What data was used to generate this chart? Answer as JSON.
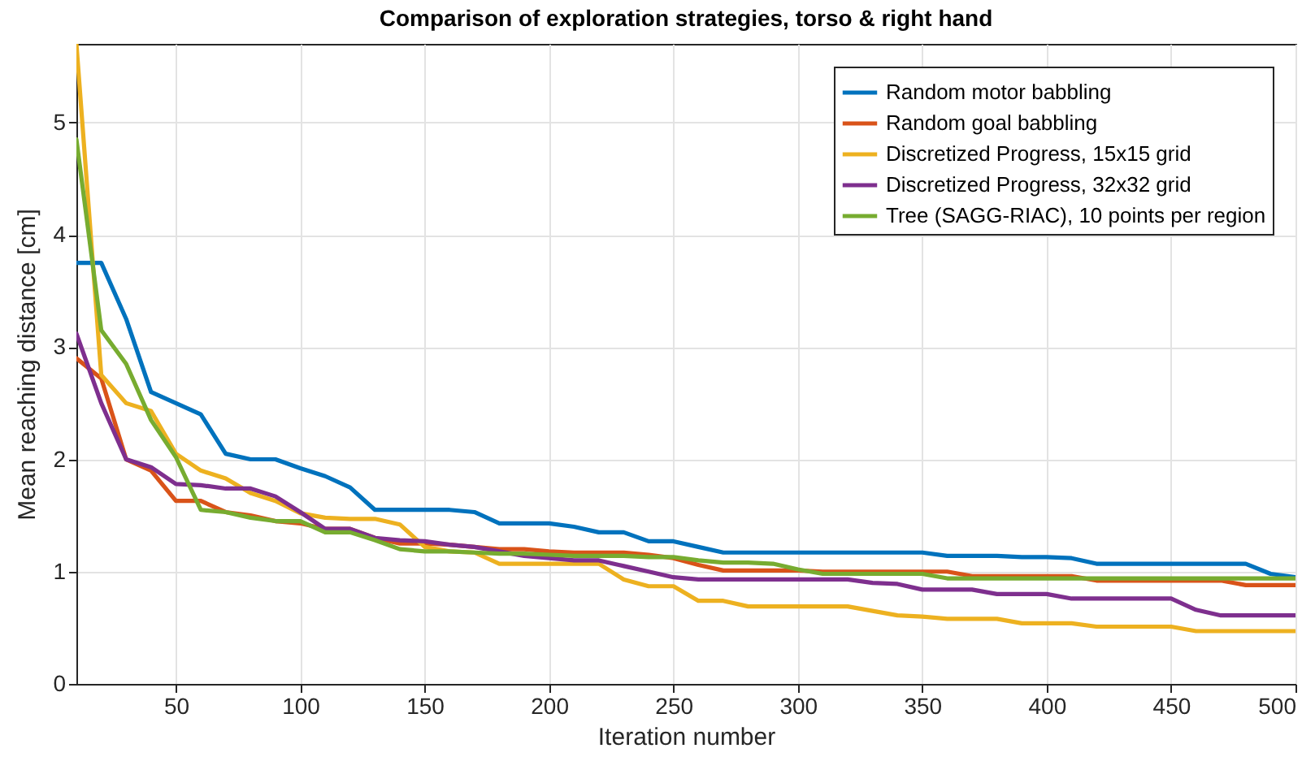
{
  "chart_data": {
    "type": "line",
    "title": "Comparison of exploration strategies, torso & right hand",
    "xlabel": "Iteration number",
    "ylabel": "Mean reaching distance [cm]",
    "x": [
      10,
      20,
      30,
      40,
      50,
      60,
      70,
      80,
      90,
      100,
      110,
      120,
      130,
      140,
      150,
      160,
      170,
      180,
      190,
      200,
      210,
      220,
      230,
      240,
      250,
      260,
      270,
      280,
      290,
      300,
      310,
      320,
      330,
      340,
      350,
      360,
      370,
      380,
      390,
      400,
      410,
      420,
      430,
      440,
      450,
      460,
      470,
      480,
      490,
      500
    ],
    "series": [
      {
        "name": "Random motor babbling",
        "color": "#0072bd",
        "values": [
          3.75,
          3.75,
          3.25,
          2.6,
          2.5,
          2.4,
          2.05,
          2.0,
          2.0,
          1.92,
          1.85,
          1.75,
          1.55,
          1.55,
          1.55,
          1.55,
          1.53,
          1.43,
          1.43,
          1.43,
          1.4,
          1.35,
          1.35,
          1.27,
          1.27,
          1.22,
          1.17,
          1.17,
          1.17,
          1.17,
          1.17,
          1.17,
          1.17,
          1.17,
          1.17,
          1.14,
          1.14,
          1.14,
          1.13,
          1.13,
          1.12,
          1.07,
          1.07,
          1.07,
          1.07,
          1.07,
          1.07,
          1.07,
          0.98,
          0.95
        ]
      },
      {
        "name": "Random goal babbling",
        "color": "#d95319",
        "values": [
          2.9,
          2.72,
          2.0,
          1.9,
          1.63,
          1.63,
          1.53,
          1.5,
          1.45,
          1.43,
          1.38,
          1.38,
          1.3,
          1.25,
          1.25,
          1.24,
          1.22,
          1.2,
          1.2,
          1.18,
          1.17,
          1.17,
          1.17,
          1.15,
          1.12,
          1.06,
          1.01,
          1.01,
          1.01,
          1.01,
          1.0,
          1.0,
          1.0,
          1.0,
          1.0,
          1.0,
          0.96,
          0.96,
          0.96,
          0.96,
          0.96,
          0.92,
          0.92,
          0.92,
          0.92,
          0.92,
          0.92,
          0.88,
          0.88,
          0.88
        ]
      },
      {
        "name": "Discretized Progress, 15x15 grid",
        "color": "#edb120",
        "values": [
          5.7,
          2.75,
          2.5,
          2.43,
          2.05,
          1.9,
          1.83,
          1.7,
          1.63,
          1.52,
          1.48,
          1.47,
          1.47,
          1.42,
          1.22,
          1.18,
          1.17,
          1.07,
          1.07,
          1.07,
          1.07,
          1.07,
          0.93,
          0.87,
          0.87,
          0.74,
          0.74,
          0.69,
          0.69,
          0.69,
          0.69,
          0.69,
          0.65,
          0.61,
          0.6,
          0.58,
          0.58,
          0.58,
          0.54,
          0.54,
          0.54,
          0.51,
          0.51,
          0.51,
          0.51,
          0.47,
          0.47,
          0.47,
          0.47,
          0.47
        ]
      },
      {
        "name": "Discretized Progress, 32x32 grid",
        "color": "#7e2f8e",
        "values": [
          3.12,
          2.5,
          2.0,
          1.93,
          1.78,
          1.77,
          1.74,
          1.74,
          1.67,
          1.53,
          1.38,
          1.38,
          1.3,
          1.28,
          1.27,
          1.24,
          1.22,
          1.18,
          1.14,
          1.12,
          1.1,
          1.1,
          1.05,
          1.0,
          0.95,
          0.93,
          0.93,
          0.93,
          0.93,
          0.93,
          0.93,
          0.93,
          0.9,
          0.89,
          0.84,
          0.84,
          0.84,
          0.8,
          0.8,
          0.8,
          0.76,
          0.76,
          0.76,
          0.76,
          0.76,
          0.66,
          0.61,
          0.61,
          0.61,
          0.61
        ]
      },
      {
        "name": "Tree (SAGG-RIAC), 10 points per region",
        "color": "#77ac30",
        "values": [
          4.85,
          3.15,
          2.85,
          2.35,
          2.02,
          1.55,
          1.53,
          1.48,
          1.45,
          1.45,
          1.35,
          1.35,
          1.28,
          1.2,
          1.18,
          1.18,
          1.17,
          1.16,
          1.16,
          1.15,
          1.14,
          1.14,
          1.14,
          1.13,
          1.13,
          1.1,
          1.08,
          1.08,
          1.07,
          1.02,
          0.98,
          0.98,
          0.98,
          0.98,
          0.98,
          0.94,
          0.94,
          0.94,
          0.94,
          0.94,
          0.94,
          0.94,
          0.94,
          0.94,
          0.94,
          0.94,
          0.94,
          0.94,
          0.94,
          0.94
        ]
      }
    ],
    "xlim": [
      10,
      500
    ],
    "ylim": [
      0,
      5.7
    ],
    "xticks": [
      50,
      100,
      150,
      200,
      250,
      300,
      350,
      400,
      450,
      500
    ],
    "yticks": [
      0,
      1,
      2,
      3,
      4,
      5
    ],
    "grid": true,
    "legend": "top right",
    "marker": "none",
    "line_style": "solid"
  }
}
